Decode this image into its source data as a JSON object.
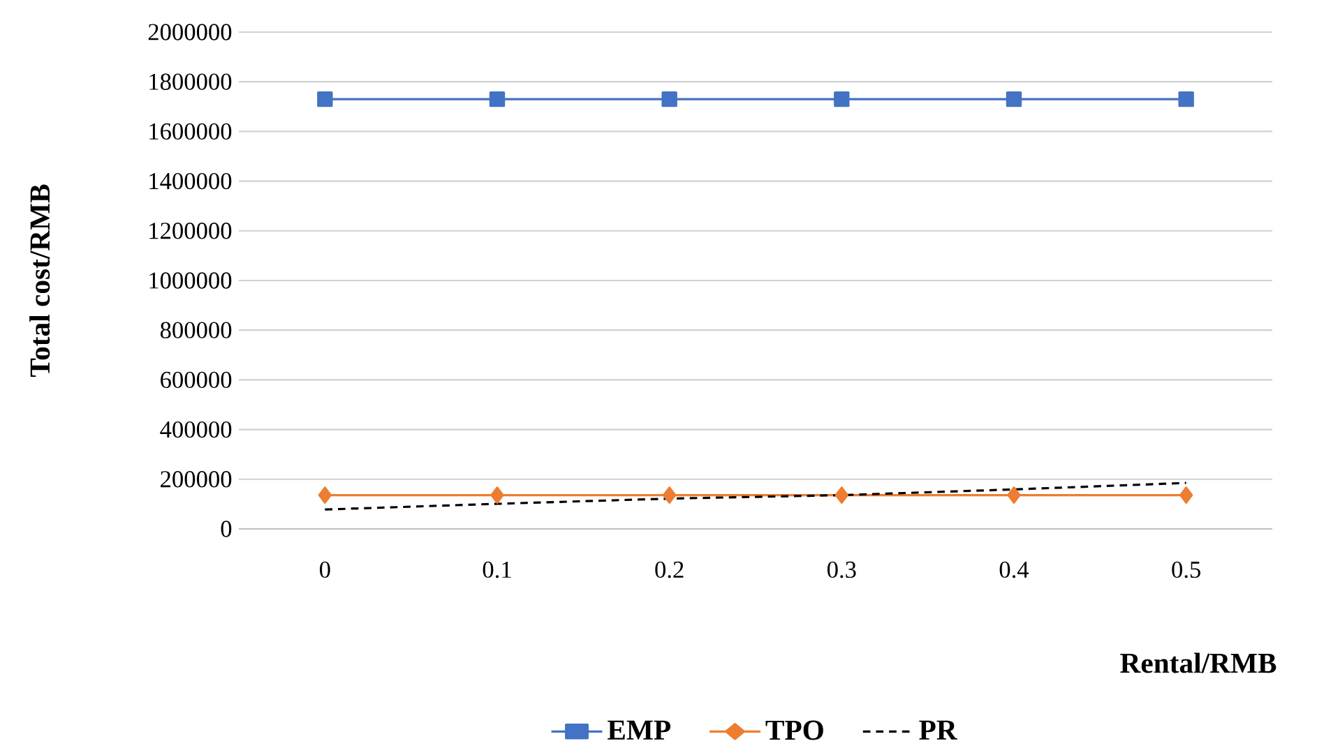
{
  "chart_data": {
    "type": "line",
    "xlabel": "Rental/RMB",
    "ylabel": "Total cost/RMB",
    "categories": [
      "0",
      "0.1",
      "0.2",
      "0.3",
      "0.4",
      "0.5"
    ],
    "series": [
      {
        "name": "EMP",
        "color": "#4472c4",
        "marker": "square",
        "line_style": "solid",
        "values": [
          1730000,
          1730000,
          1730000,
          1730000,
          1730000,
          1730000
        ]
      },
      {
        "name": "TPO",
        "color": "#ed7d31",
        "marker": "diamond",
        "line_style": "solid",
        "values": [
          136000,
          136000,
          136000,
          136000,
          136000,
          136000
        ]
      },
      {
        "name": "PR",
        "color": "#000000",
        "marker": "none",
        "line_style": "dashed",
        "values": [
          78000,
          101000,
          122000,
          136000,
          159000,
          185000
        ]
      }
    ],
    "ylim": [
      0,
      2000000
    ],
    "yticks": [
      0,
      200000,
      400000,
      600000,
      800000,
      1000000,
      1200000,
      1400000,
      1600000,
      1800000,
      2000000
    ],
    "grid": "y",
    "legend": "bottom"
  }
}
